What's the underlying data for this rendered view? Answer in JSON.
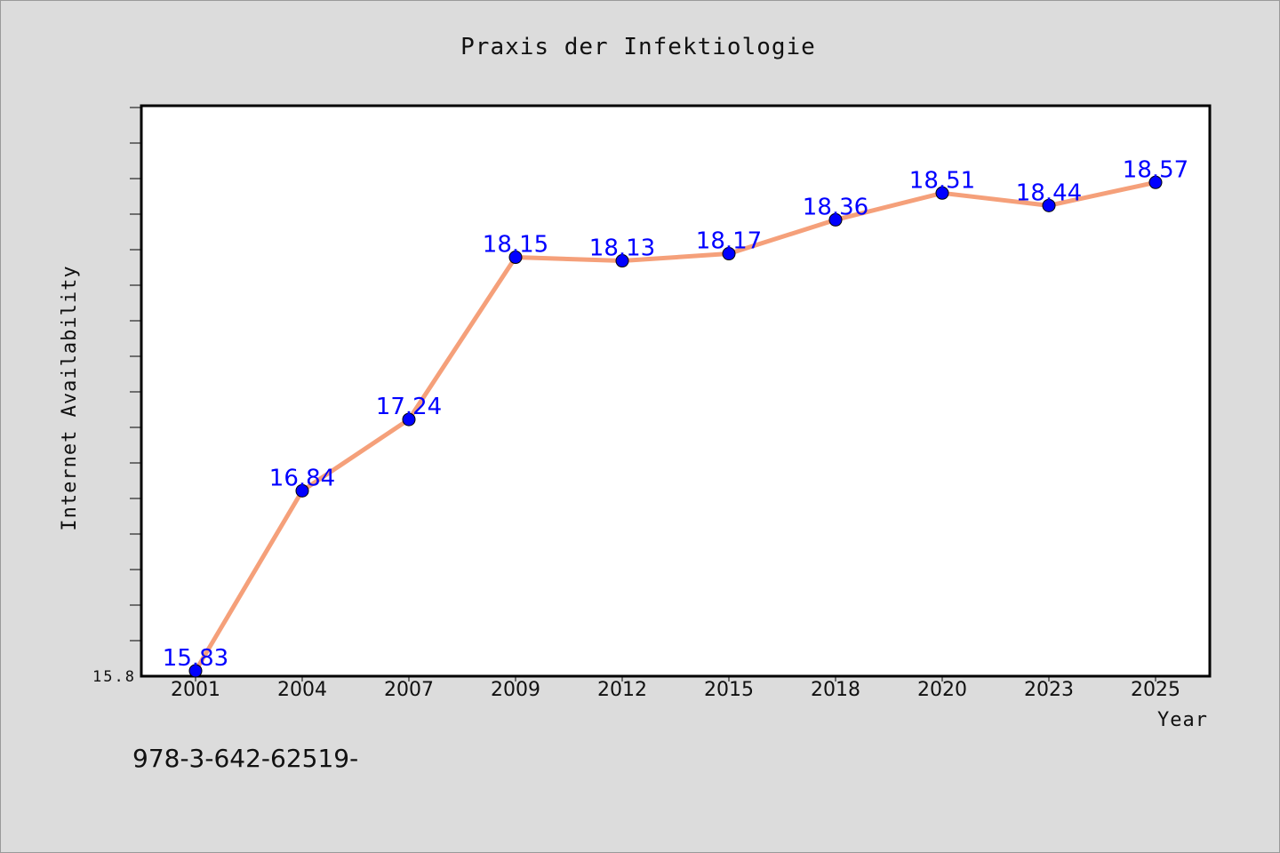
{
  "chart_data": {
    "type": "line",
    "title": "Praxis der Infektiologie",
    "xlabel": "Year",
    "ylabel": "Internet Availability",
    "categories": [
      "2001",
      "2004",
      "2007",
      "2009",
      "2012",
      "2015",
      "2018",
      "2020",
      "2023",
      "2025"
    ],
    "series": [
      {
        "values": [
          15.83,
          16.84,
          17.24,
          18.15,
          18.13,
          18.17,
          18.36,
          18.51,
          18.44,
          18.57
        ],
        "line_color": "#f5a07a",
        "marker_color": "#0000ff"
      }
    ],
    "data_labels": [
      "15.83",
      "16.84",
      "17.24",
      "18.15",
      "18.13",
      "18.17",
      "18.36",
      "18.51",
      "18.44",
      "18.57"
    ],
    "ytick_labels": [
      "15.8"
    ],
    "ylim": [
      15.8,
      19.0
    ],
    "grid": false,
    "data_label_color": "#0000ff"
  },
  "footer": {
    "text": "978-3-642-62519-"
  }
}
